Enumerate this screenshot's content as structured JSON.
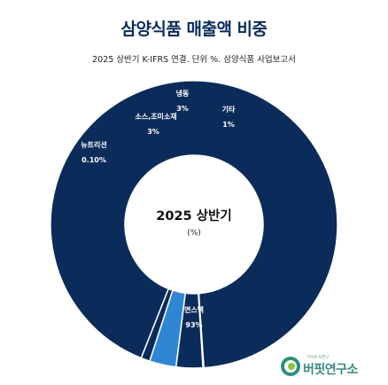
{
  "title": "삼양식품 매출액 비중",
  "subtitle": "2025 상반기 K-IFRS 연결. 단위 %. 삼양식품 사업보고서",
  "chart_data": {
    "type": "pie",
    "style": "donut",
    "center_label": "2025 상반기",
    "center_unit": "(%)",
    "slices": [
      {
        "label": "면스낵",
        "value": 93,
        "value_text": "93%",
        "color": "#0b2c5a"
      },
      {
        "label": "뉴트리션",
        "value": 0.1,
        "value_text": "0.10%",
        "color": "#0b2c5a"
      },
      {
        "label": "소스,조미소재",
        "value": 3,
        "value_text": "3%",
        "color": "#0b2c5a"
      },
      {
        "label": "냉동",
        "value": 3,
        "value_text": "3%",
        "color": "#2f86d3"
      },
      {
        "label": "기타",
        "value": 1,
        "value_text": "1%",
        "color": "#0b2c5a"
      }
    ]
  },
  "logo": {
    "name": "버핏연구소",
    "small_text": "가치투자연구"
  }
}
